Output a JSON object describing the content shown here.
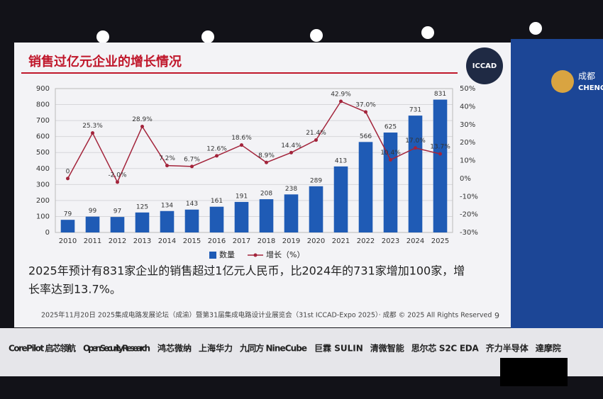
{
  "slide": {
    "title": "销售过亿元企业的增长情况",
    "caption": [
      "2025年预计有831家企业的销售超过1亿元人民币，比2024年的731家增加100家，增",
      "长率达到13.7%。"
    ],
    "footer": "2025年11月20日 2025集成电路发展论坛（成渝）暨第31届集成电路设计业展览会（31st ICCAD-Expo 2025）· 成都 © 2025 All Rights Reserved",
    "page": "9",
    "logo": "ICCAD",
    "side_panel": [
      "成都",
      "CHENG"
    ]
  },
  "chart_data": {
    "type": "bar",
    "categories": [
      "2010",
      "2011",
      "2012",
      "2013",
      "2014",
      "2015",
      "2016",
      "2017",
      "2018",
      "2019",
      "2020",
      "2021",
      "2022",
      "2023",
      "2024",
      "2025"
    ],
    "series": [
      {
        "name": "数量",
        "color": "#1f5bb5",
        "values": [
          79,
          99,
          97,
          125,
          134,
          143,
          161,
          191,
          208,
          238,
          289,
          413,
          566,
          625,
          731,
          831
        ]
      },
      {
        "name": "增长（%）",
        "color": "#a3243b",
        "type": "line",
        "axis": "y2",
        "values": [
          0,
          25.3,
          -2.0,
          28.9,
          7.2,
          6.7,
          12.6,
          18.6,
          8.9,
          14.4,
          21.4,
          42.9,
          37.0,
          10.4,
          17.0,
          13.7
        ],
        "value_labels": [
          "0",
          "25.3%",
          "-2.0%",
          "28.9%",
          "7.2%",
          "6.7%",
          "12.6%",
          "18.6%",
          "8.9%",
          "14.4%",
          "21.4%",
          "42.9%",
          "37.0%",
          "10.4%",
          "17.0%",
          "13.7%"
        ]
      }
    ],
    "ylim": [
      0,
      900
    ],
    "yticks": [
      0,
      100,
      200,
      300,
      400,
      500,
      600,
      700,
      800,
      900
    ],
    "y2lim": [
      -30,
      50
    ],
    "y2ticks": [
      {
        "value": -30,
        "label": "-30%"
      },
      {
        "value": -20,
        "label": "-20%"
      },
      {
        "value": -10,
        "label": "-10%"
      },
      {
        "value": 0,
        "label": "0%"
      },
      {
        "value": 10,
        "label": "10%"
      },
      {
        "value": 20,
        "label": "20%"
      },
      {
        "value": 30,
        "label": "30%"
      },
      {
        "value": 40,
        "label": "40%"
      },
      {
        "value": 50,
        "label": "50%"
      }
    ],
    "grid": true,
    "legend": "bottom"
  },
  "sponsors": [
    "CorePilot 启芯领航",
    "Open Security Research",
    "鸿芯微纳",
    "上海华力",
    "九同方 NineCube",
    "巨霖 SULIN",
    "清微智能",
    "思尔芯 S2C EDA",
    "齐力半导体",
    "達摩院"
  ]
}
